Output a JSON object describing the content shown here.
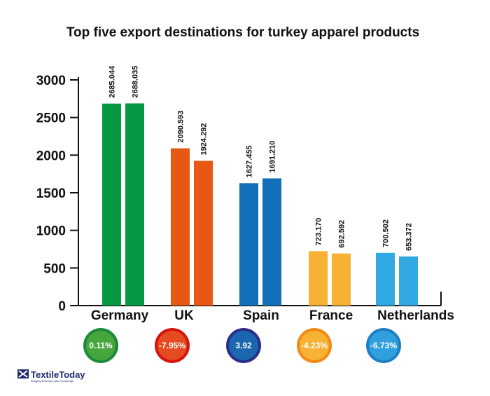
{
  "chart_data": {
    "type": "bar",
    "title": "Top five export destinations for turkey apparel products",
    "categories": [
      "Germany",
      "UK",
      "Spain",
      "France",
      "Netherlands"
    ],
    "series": [
      {
        "values": [
          2685.044,
          2090.593,
          1627.455,
          723.17,
          700.502
        ]
      },
      {
        "values": [
          2688.035,
          1924.292,
          1691.21,
          692.592,
          653.372
        ]
      }
    ],
    "value_labels": [
      [
        "2685.044",
        "2688.035"
      ],
      [
        "2090.593",
        "1924.292"
      ],
      [
        "1627.455",
        "1691.210"
      ],
      [
        "723.170",
        "692.592"
      ],
      [
        "700.502",
        "653.372"
      ]
    ],
    "category_colors": [
      "#079844",
      "#e65814",
      "#1170b8",
      "#f7b233",
      "#31a8e2"
    ],
    "ylim": [
      0,
      3000
    ],
    "yticks": [
      "0",
      "500",
      "1000",
      "1500",
      "2000",
      "2500",
      "3000"
    ],
    "grid": false,
    "legend": "none",
    "change_badges": [
      {
        "label": "0.11%",
        "fill": "#47a63b",
        "ring": "#1b8a3a"
      },
      {
        "label": "-7.95%",
        "fill": "#e54a21",
        "ring": "#d8140f"
      },
      {
        "label": "3.92",
        "fill": "#1a67b0",
        "ring": "#2b2f8a"
      },
      {
        "label": "-4.23%",
        "fill": "#f7b233",
        "ring": "#f28a16"
      },
      {
        "label": "-6.73%",
        "fill": "#2f9fdd",
        "ring": "#1e7fc4"
      }
    ]
  },
  "logo": {
    "name": "TextileToday",
    "tagline": "Bringing Business with Knowledge"
  }
}
